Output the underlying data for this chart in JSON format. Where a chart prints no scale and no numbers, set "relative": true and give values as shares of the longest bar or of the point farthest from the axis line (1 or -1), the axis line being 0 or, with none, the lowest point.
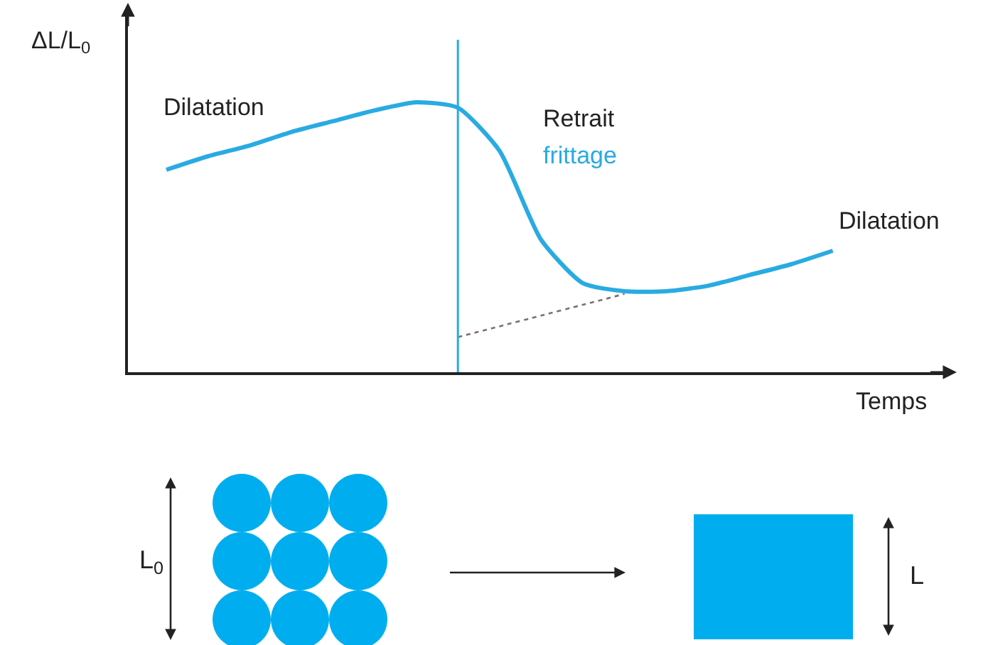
{
  "chart_data": {
    "type": "line",
    "relative": true,
    "xlabel": "Temps",
    "ylabel": "ΔL/L$_{0}$",
    "categories": [
      null,
      null,
      null,
      null,
      null,
      null,
      null,
      null,
      null,
      null,
      null,
      null,
      null,
      null,
      null,
      null,
      null
    ],
    "series": [
      {
        "color": "#29abe2",
        "values": [
          0.75,
          0.8,
          0.84,
          0.89,
          0.93,
          0.97,
          1.0,
          0.98,
          0.82,
          0.49,
          0.33,
          0.3,
          0.3,
          0.32,
          0.36,
          0.4,
          0.45
        ]
      },
      {
        "color": "#7f6f6f",
        "line_style": "dotted",
        "values": [
          null,
          null,
          null,
          null,
          null,
          null,
          null,
          0.13,
          0.17,
          0.21,
          0.25,
          0.29,
          null,
          null,
          null,
          null,
          null
        ]
      }
    ],
    "annotations": [
      "Dilatation",
      "Retrait",
      "frittage",
      "Dilatation",
      "L$_{0}$",
      "L"
    ],
    "marker": "none"
  }
}
